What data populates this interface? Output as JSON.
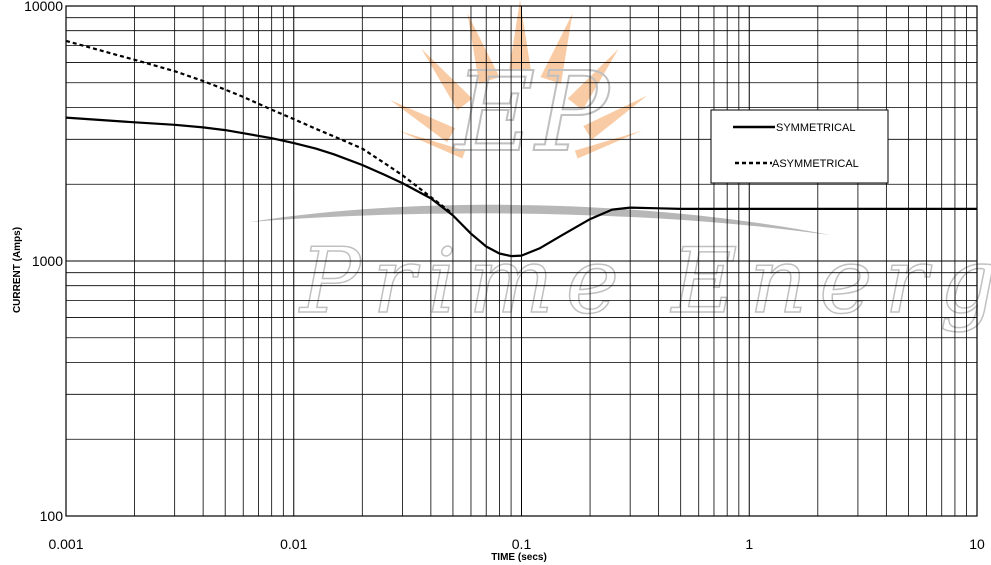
{
  "chart_data": {
    "type": "line",
    "title": "",
    "xlabel": "TIME (secs)",
    "ylabel": "CURRENT (Amps)",
    "xscale": "log",
    "yscale": "log",
    "xlim": [
      0.001,
      10
    ],
    "ylim": [
      100,
      10000
    ],
    "grid": true,
    "legend_position": "top-right",
    "x_ticks": [
      {
        "value": 0.001,
        "label": "0.001"
      },
      {
        "value": 0.01,
        "label": "0.01"
      },
      {
        "value": 0.1,
        "label": "0.1"
      },
      {
        "value": 1,
        "label": "1"
      },
      {
        "value": 10,
        "label": "10"
      }
    ],
    "y_ticks": [
      {
        "value": 100,
        "label": "100"
      },
      {
        "value": 1000,
        "label": "1000"
      },
      {
        "value": 10000,
        "label": "10000"
      }
    ],
    "series": [
      {
        "name": "SYMMETRICAL",
        "style": "solid",
        "color": "#000000",
        "x": [
          0.001,
          0.0015,
          0.002,
          0.003,
          0.004,
          0.005,
          0.006,
          0.008,
          0.01,
          0.0125,
          0.015,
          0.02,
          0.025,
          0.03,
          0.04,
          0.05,
          0.06,
          0.07,
          0.08,
          0.09,
          0.1,
          0.12,
          0.15,
          0.2,
          0.25,
          0.3,
          0.4,
          0.5,
          1,
          2,
          5,
          10
        ],
        "y": [
          3650,
          3560,
          3500,
          3420,
          3340,
          3260,
          3170,
          3030,
          2900,
          2760,
          2620,
          2380,
          2180,
          2020,
          1760,
          1510,
          1280,
          1140,
          1070,
          1045,
          1050,
          1120,
          1260,
          1460,
          1590,
          1620,
          1610,
          1600,
          1600,
          1600,
          1600,
          1600
        ]
      },
      {
        "name": "ASYMMETRICAL",
        "style": "dashed",
        "color": "#000000",
        "x": [
          0.001,
          0.0015,
          0.002,
          0.003,
          0.004,
          0.005,
          0.006,
          0.008,
          0.01,
          0.0125,
          0.015,
          0.02,
          0.025,
          0.03,
          0.04,
          0.05
        ],
        "y": [
          7300,
          6600,
          6150,
          5550,
          5080,
          4700,
          4400,
          3920,
          3600,
          3300,
          3080,
          2760,
          2420,
          2170,
          1780,
          1530
        ]
      }
    ]
  },
  "watermark": {
    "monogram": "EP",
    "text": "Prime Energy",
    "sun_color": "#f5a25a",
    "swoosh_color": "#9a9a9a"
  }
}
